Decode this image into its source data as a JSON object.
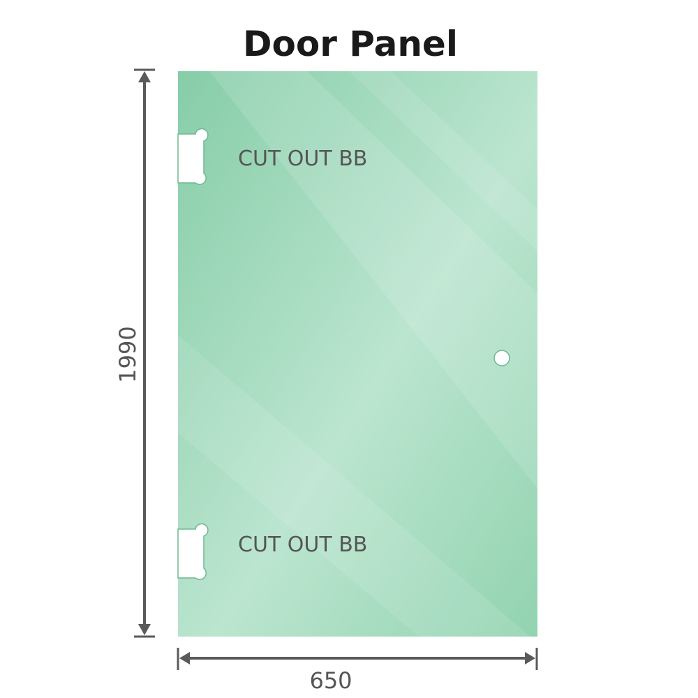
{
  "title": "Door Panel",
  "cutouts": [
    {
      "label": "CUT OUT BB"
    },
    {
      "label": "CUT OUT BB"
    }
  ],
  "dimensions": {
    "height": "1990",
    "width": "650"
  },
  "colors": {
    "glass": "#8dd0ac",
    "glass_light": "#bde6d0",
    "dimension_line": "#5a5a5a"
  }
}
